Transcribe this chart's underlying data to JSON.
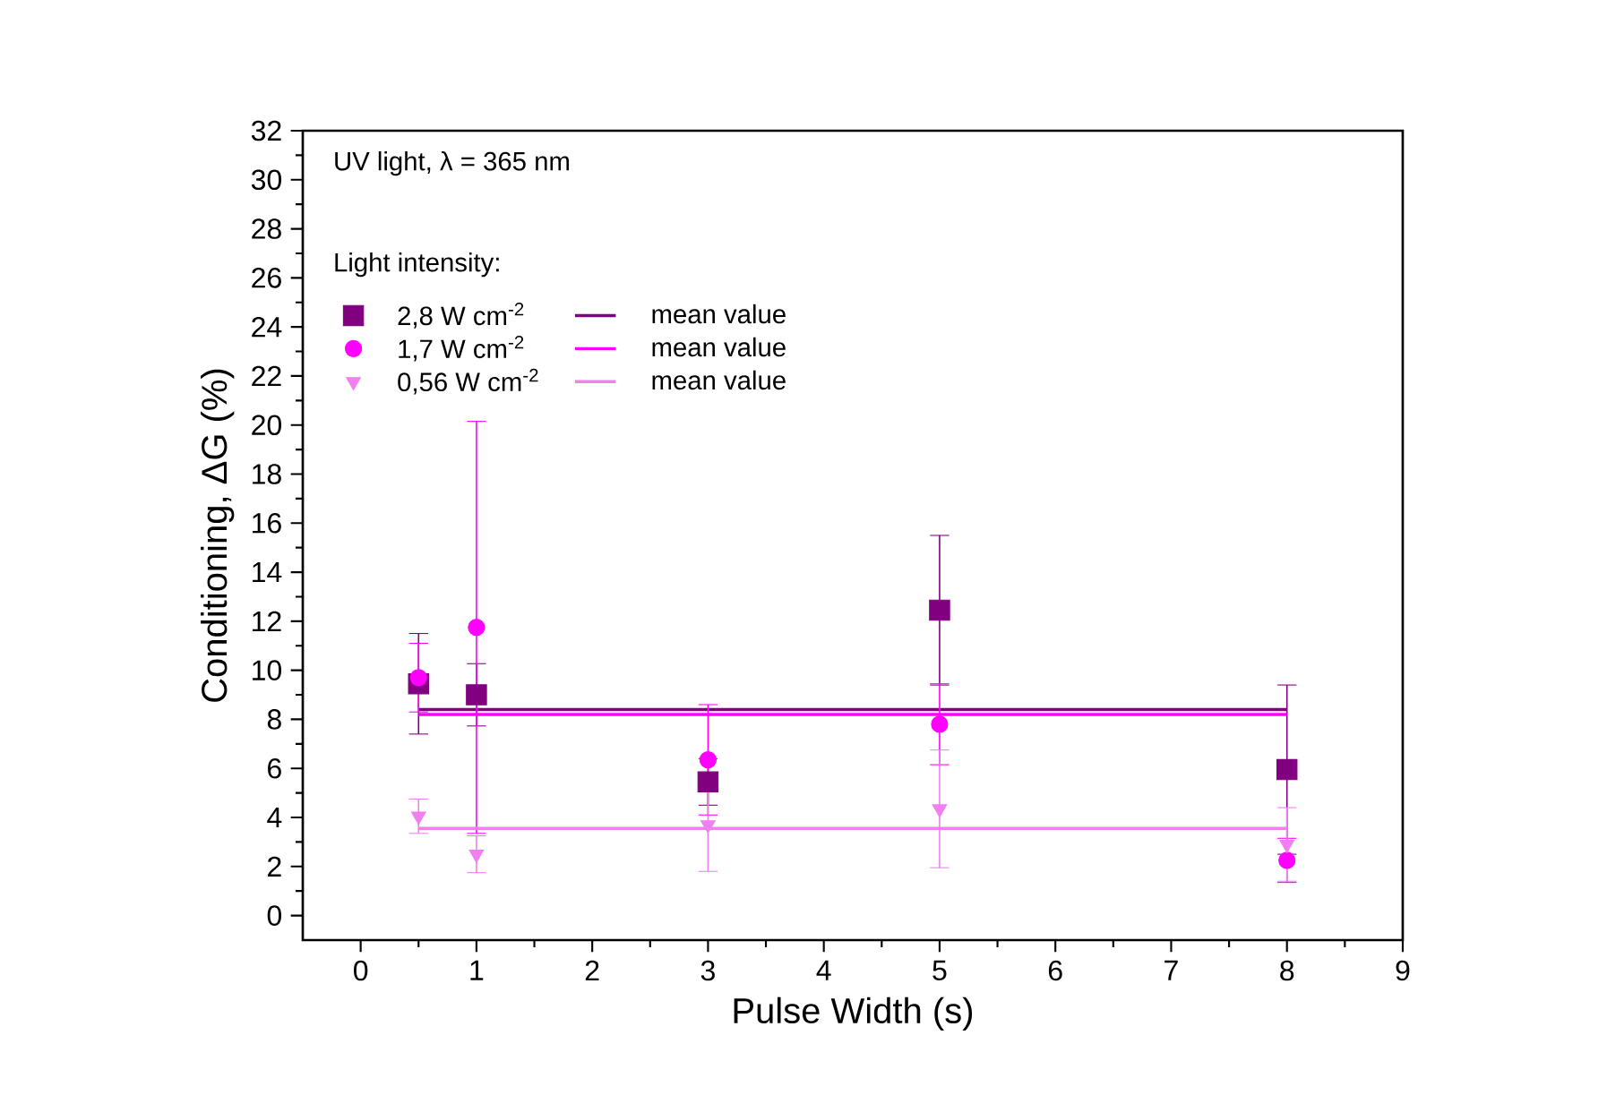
{
  "chart_data": {
    "type": "scatter",
    "xlabel": "Pulse Width (s)",
    "ylabel": "Conditioning, ΔG (%)",
    "legend_title": "Light intensity:",
    "annotations": [
      "UV light, λ = 365 nm"
    ],
    "xlim": [
      -0.5,
      9
    ],
    "ylim": [
      -1,
      32
    ],
    "xticks": [
      0,
      1,
      2,
      3,
      4,
      5,
      6,
      7,
      8,
      9
    ],
    "yticks": [
      0,
      2,
      4,
      6,
      8,
      10,
      12,
      14,
      16,
      18,
      20,
      22,
      24,
      26,
      28,
      30,
      32
    ],
    "legend": "top left",
    "grid": false,
    "series": [
      {
        "name": "2,8 W cm$^{-2}$",
        "color": "#800080",
        "marker": "square",
        "x": [
          0.5,
          1,
          3,
          5,
          8
        ],
        "values": [
          9.45,
          9.0,
          5.45,
          12.45,
          5.95
        ],
        "errors": [
          2.05,
          1.27,
          0.95,
          3.05,
          3.45
        ]
      },
      {
        "name": "mean value",
        "type": "line",
        "color": "#800080",
        "line_style": "solid",
        "x": [
          0.5,
          8
        ],
        "values": [
          8.4,
          8.4
        ]
      },
      {
        "name": "1,7 W cm$^{-2}$",
        "color": "#ff00ff",
        "marker": "circle",
        "x": [
          0.5,
          1,
          3,
          5,
          8
        ],
        "values": [
          9.7,
          11.75,
          6.35,
          7.8,
          2.25
        ],
        "errors": [
          1.4,
          8.4,
          2.25,
          1.65,
          0.9
        ]
      },
      {
        "name": "mean value",
        "type": "line",
        "color": "#ff00ff",
        "line_style": "solid",
        "x": [
          0.5,
          8
        ],
        "values": [
          8.2,
          8.2
        ]
      },
      {
        "name": "0,56 W cm$^{-2}$",
        "color": "#f080f0",
        "marker": "triangle",
        "x": [
          0.5,
          1,
          3,
          5,
          8
        ],
        "values": [
          4.05,
          2.5,
          3.7,
          4.35,
          2.9
        ],
        "errors": [
          0.7,
          0.75,
          1.9,
          2.4,
          1.5
        ]
      },
      {
        "name": "mean value",
        "type": "line",
        "color": "#f080f0",
        "line_style": "solid",
        "x": [
          0.5,
          8
        ],
        "values": [
          3.55,
          3.55
        ]
      }
    ]
  }
}
